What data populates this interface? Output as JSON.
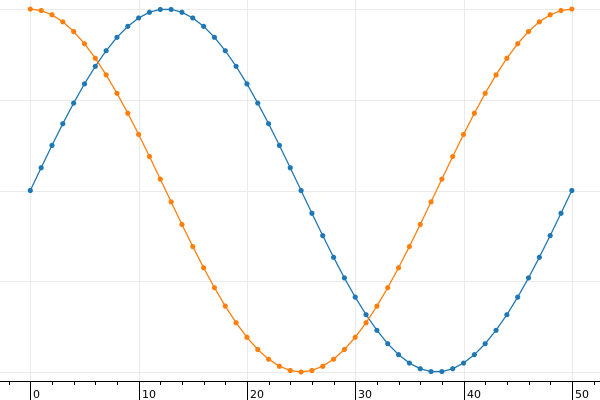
{
  "chart_data": {
    "type": "line",
    "title": "",
    "xlabel": "",
    "ylabel": "",
    "xlim": [
      -2.8,
      52.6
    ],
    "ylim": [
      -1.05,
      1.05
    ],
    "x_ticks_major": [
      0,
      10,
      20,
      30,
      40,
      50
    ],
    "x_tick_labels": [
      "0",
      "10",
      "20",
      "30",
      "40",
      "50"
    ],
    "x_ticks_minor_step": 2,
    "y_gridlines": [
      -1,
      -0.5,
      0,
      0.5,
      1
    ],
    "grid": true,
    "legend": "none",
    "x": [
      0,
      1,
      2,
      3,
      4,
      5,
      6,
      7,
      8,
      9,
      10,
      11,
      12,
      13,
      14,
      15,
      16,
      17,
      18,
      19,
      20,
      21,
      22,
      23,
      24,
      25,
      26,
      27,
      28,
      29,
      30,
      31,
      32,
      33,
      34,
      35,
      36,
      37,
      38,
      39,
      40,
      41,
      42,
      43,
      44,
      45,
      46,
      47,
      48,
      49,
      50
    ],
    "series": [
      {
        "color": "#1f77b4",
        "values": [
          0.0,
          0.1253,
          0.2487,
          0.3681,
          0.4818,
          0.5878,
          0.6845,
          0.7705,
          0.8443,
          0.9048,
          0.9511,
          0.9823,
          0.998,
          0.998,
          0.9823,
          0.9511,
          0.9048,
          0.8443,
          0.7705,
          0.6845,
          0.5878,
          0.4818,
          0.3681,
          0.2487,
          0.1253,
          0.0,
          -0.1253,
          -0.2487,
          -0.3681,
          -0.4818,
          -0.5878,
          -0.6845,
          -0.7705,
          -0.8443,
          -0.9048,
          -0.9511,
          -0.9823,
          -0.998,
          -0.998,
          -0.9823,
          -0.9511,
          -0.9048,
          -0.8443,
          -0.7705,
          -0.6845,
          -0.5878,
          -0.4818,
          -0.3681,
          -0.2487,
          -0.1253,
          0.0
        ]
      },
      {
        "color": "#ff7f0e",
        "values": [
          1.0,
          0.9921,
          0.9686,
          0.9298,
          0.8763,
          0.809,
          0.729,
          0.6374,
          0.5358,
          0.4258,
          0.309,
          0.1874,
          0.0628,
          -0.0628,
          -0.1874,
          -0.309,
          -0.4258,
          -0.5358,
          -0.6374,
          -0.729,
          -0.809,
          -0.8763,
          -0.9298,
          -0.9686,
          -0.9921,
          -1.0,
          -0.9921,
          -0.9686,
          -0.9298,
          -0.8763,
          -0.809,
          -0.729,
          -0.6374,
          -0.5358,
          -0.4258,
          -0.309,
          -0.1874,
          -0.0628,
          0.0628,
          0.1874,
          0.309,
          0.4258,
          0.5358,
          0.6374,
          0.729,
          0.809,
          0.8763,
          0.9298,
          0.9686,
          0.9921,
          1.0
        ]
      }
    ]
  }
}
